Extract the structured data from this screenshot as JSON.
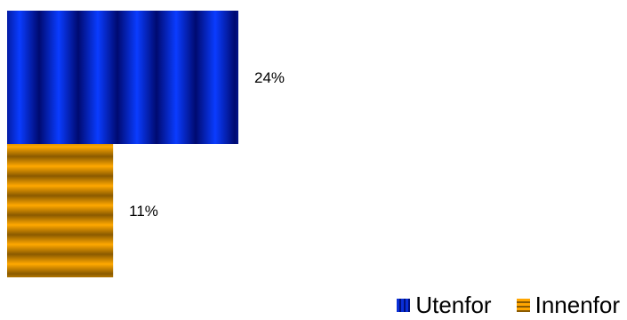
{
  "chart_data": {
    "type": "bar",
    "orientation": "horizontal",
    "series": [
      {
        "name": "Utenfor",
        "values": [
          24
        ],
        "label": "24%",
        "color": "#0033cc",
        "pattern": "vertical-stripes"
      },
      {
        "name": "Innenfor",
        "values": [
          11
        ],
        "label": "11%",
        "color": "#ffa500",
        "pattern": "horizontal-stripes"
      }
    ],
    "unit": "%",
    "xlim": [
      0,
      24
    ],
    "grid": false,
    "axes_visible": false,
    "legend_position": "bottom-right"
  }
}
